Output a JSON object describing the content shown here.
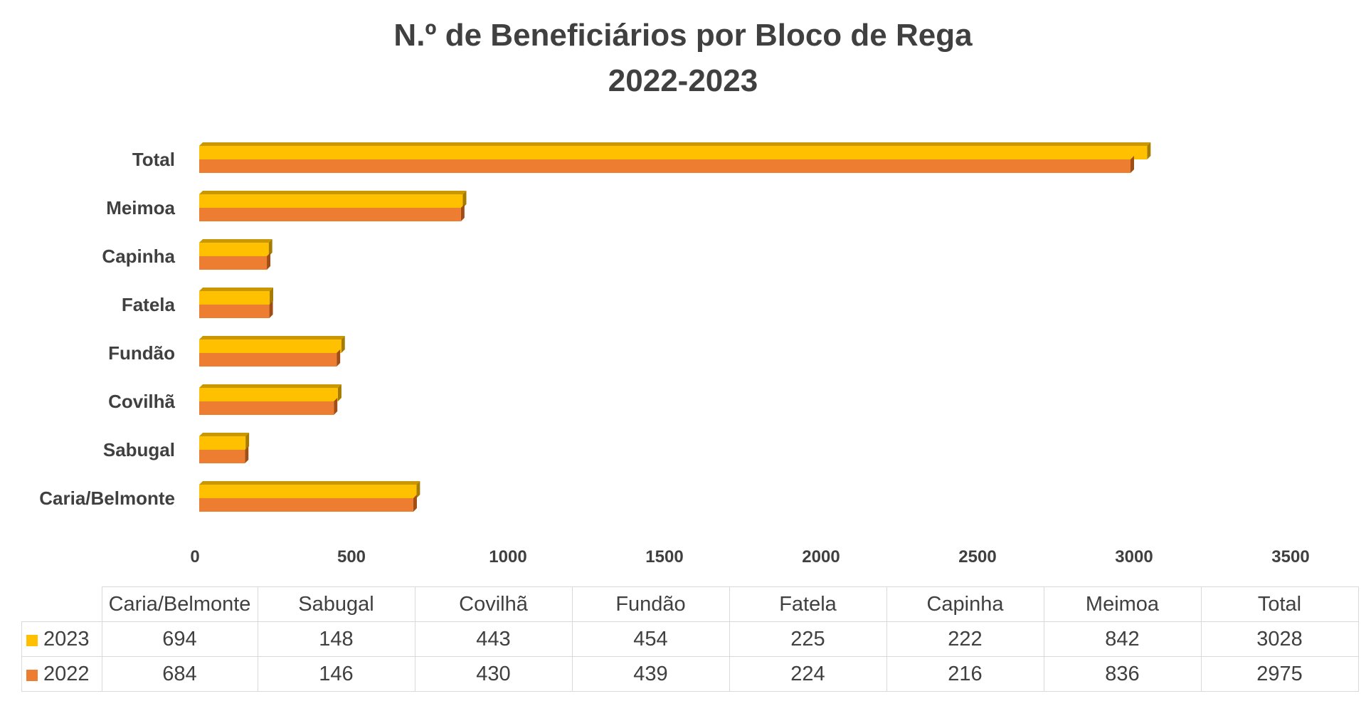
{
  "chart_data": {
    "type": "bar",
    "orientation": "horizontal",
    "title": "N.º de Beneficiários por Bloco de Rega",
    "subtitle": "2022-2023",
    "categories": [
      "Caria/Belmonte",
      "Sabugal",
      "Covilhã",
      "Fundão",
      "Fatela",
      "Capinha",
      "Meimoa",
      "Total"
    ],
    "series": [
      {
        "name": "2023",
        "color": "#ffc000",
        "values": [
          694,
          148,
          443,
          454,
          225,
          222,
          842,
          3028
        ]
      },
      {
        "name": "2022",
        "color": "#ed7d31",
        "values": [
          684,
          146,
          430,
          439,
          224,
          216,
          836,
          2975
        ]
      }
    ],
    "xlim": [
      0,
      3500
    ],
    "ticks": [
      0,
      500,
      1000,
      1500,
      2000,
      2500,
      3000,
      3500
    ],
    "grid": false,
    "legend": "data table below chart",
    "data_table": true
  }
}
